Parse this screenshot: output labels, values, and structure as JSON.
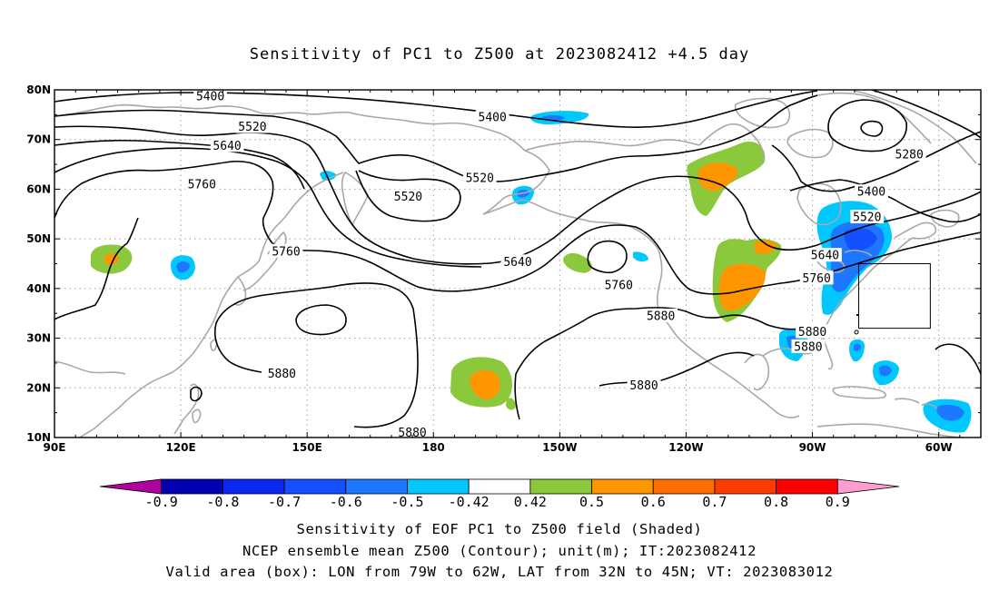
{
  "title": "Sensitivity of PC1 to Z500 at 2023082412 +4.5 day",
  "map": {
    "lon_range": [
      90,
      310
    ],
    "lat_range": [
      10,
      80
    ],
    "lat_ticks": [
      {
        "lat": 80,
        "label": "80N"
      },
      {
        "lat": 70,
        "label": "70N"
      },
      {
        "lat": 60,
        "label": "60N"
      },
      {
        "lat": 50,
        "label": "50N"
      },
      {
        "lat": 40,
        "label": "40N"
      },
      {
        "lat": 30,
        "label": "30N"
      },
      {
        "lat": 20,
        "label": "20N"
      },
      {
        "lat": 10,
        "label": "10N"
      }
    ],
    "lon_ticks": [
      {
        "lon": 90,
        "label": "90E"
      },
      {
        "lon": 120,
        "label": "120E"
      },
      {
        "lon": 150,
        "label": "150E"
      },
      {
        "lon": 180,
        "label": "180"
      },
      {
        "lon": 210,
        "label": "150W"
      },
      {
        "lon": 240,
        "label": "120W"
      },
      {
        "lon": 270,
        "label": "90W"
      },
      {
        "lon": 300,
        "label": "60W"
      }
    ],
    "contour_labels": [
      {
        "text": "5400",
        "lon": 127,
        "lat": 78.7
      },
      {
        "text": "5400",
        "lon": 194,
        "lat": 74.5
      },
      {
        "text": "5400",
        "lon": 284,
        "lat": 59.5
      },
      {
        "text": "5520",
        "lon": 137,
        "lat": 72.6
      },
      {
        "text": "5520",
        "lon": 191,
        "lat": 62.3
      },
      {
        "text": "5520",
        "lon": 174,
        "lat": 58.5
      },
      {
        "text": "5520",
        "lon": 283,
        "lat": 54.4
      },
      {
        "text": "5640",
        "lon": 131,
        "lat": 68.8
      },
      {
        "text": "5640",
        "lon": 200,
        "lat": 45.4
      },
      {
        "text": "5640",
        "lon": 273,
        "lat": 46.7
      },
      {
        "text": "5760",
        "lon": 125,
        "lat": 61.0
      },
      {
        "text": "5760",
        "lon": 145,
        "lat": 47.5
      },
      {
        "text": "5760",
        "lon": 224,
        "lat": 40.7
      },
      {
        "text": "5760",
        "lon": 271,
        "lat": 42.1
      },
      {
        "text": "5880",
        "lon": 144,
        "lat": 22.9
      },
      {
        "text": "5880",
        "lon": 175,
        "lat": 11.0
      },
      {
        "text": "5880",
        "lon": 234,
        "lat": 34.5
      },
      {
        "text": "5880",
        "lon": 230,
        "lat": 20.5
      },
      {
        "text": "5880",
        "lon": 270,
        "lat": 31.3
      },
      {
        "text": "5880",
        "lon": 269,
        "lat": 28.3
      },
      {
        "text": "5280",
        "lon": 293,
        "lat": 67.0
      }
    ],
    "valid_box": {
      "lon_west": -79,
      "lon_east": -62,
      "lat_south": 32,
      "lat_north": 45
    }
  },
  "colorbar": {
    "colors": [
      "#b000a0",
      "#0000b0",
      "#0a28f0",
      "#1450ff",
      "#1e78ff",
      "#00c8ff",
      "#ffffff",
      "#8cc83c",
      "#ff9600",
      "#ff6e00",
      "#ff3c00",
      "#ff0000",
      "#ff9cd0"
    ],
    "labels": [
      "-0.9",
      "-0.8",
      "-0.7",
      "-0.6",
      "-0.5",
      "-0.42",
      "0.42",
      "0.5",
      "0.6",
      "0.7",
      "0.8",
      "0.9"
    ]
  },
  "caption": {
    "line1": "Sensitivity of EOF PC1 to Z500 field (Shaded)",
    "line2": "NCEP ensemble mean Z500 (Contour); unit(m); IT:2023082412",
    "line3": "Valid area (box): LON from 79W to 62W, LAT from 32N to 45N; VT: 2023083012"
  }
}
